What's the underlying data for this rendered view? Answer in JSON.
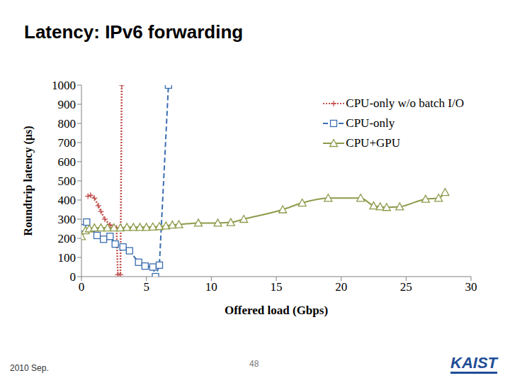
{
  "chart_data": {
    "type": "line",
    "title": "Latency: IPv6 forwarding",
    "x_label": "Offered load (Gbps)",
    "y_label": "Roundtrip latency (µs)",
    "xlim": [
      0,
      30
    ],
    "xticks": [
      0,
      5,
      10,
      15,
      20,
      25,
      30
    ],
    "ylim": [
      0,
      1000
    ],
    "yticks": [
      0,
      100,
      200,
      300,
      400,
      500,
      600,
      700,
      800,
      900,
      1000
    ],
    "grid": false,
    "legend": "upper right",
    "series": [
      {
        "name": "CPU-only w/o batch I/O",
        "color": "#c0504d",
        "marker": "plus",
        "line_style": "dotted",
        "x": [
          0.5,
          0.7,
          1.0,
          1.3,
          1.5,
          1.8,
          2.2,
          2.7,
          2.8,
          3.0,
          3.1
        ],
        "values": [
          420,
          425,
          410,
          370,
          340,
          300,
          270,
          255,
          10,
          10,
          1000
        ]
      },
      {
        "name": "CPU-only",
        "color": "#3a6db0",
        "marker": "square",
        "line_style": "dashed",
        "x": [
          0.1,
          0.4,
          1.2,
          1.7,
          2.2,
          2.6,
          3.2,
          3.7,
          4.4,
          4.9,
          5.5,
          5.7,
          6.0,
          6.7
        ],
        "values": [
          255,
          285,
          215,
          195,
          210,
          170,
          155,
          135,
          75,
          55,
          50,
          0,
          60,
          1000
        ]
      },
      {
        "name": "CPU+GPU",
        "color": "#8c9b4a",
        "marker": "triangle",
        "line_style": "solid",
        "x": [
          0,
          0.3,
          0.6,
          1.0,
          1.5,
          2.0,
          2.5,
          3.0,
          3.5,
          4.0,
          4.5,
          5.0,
          5.5,
          6.0,
          6.5,
          7.0,
          7.5,
          9.0,
          10.5,
          11.5,
          12.5,
          15.5,
          17.0,
          19.0,
          21.5,
          22.5,
          23.0,
          23.5,
          24.5,
          26.5,
          27.5,
          28.0
        ],
        "values": [
          210,
          240,
          250,
          255,
          255,
          255,
          255,
          255,
          258,
          258,
          258,
          258,
          260,
          262,
          265,
          270,
          272,
          280,
          280,
          283,
          300,
          350,
          385,
          410,
          410,
          370,
          365,
          362,
          365,
          405,
          410,
          440
        ]
      }
    ]
  },
  "footer": {
    "date": "2010 Sep.",
    "page": "48",
    "logo": "KAIST"
  }
}
